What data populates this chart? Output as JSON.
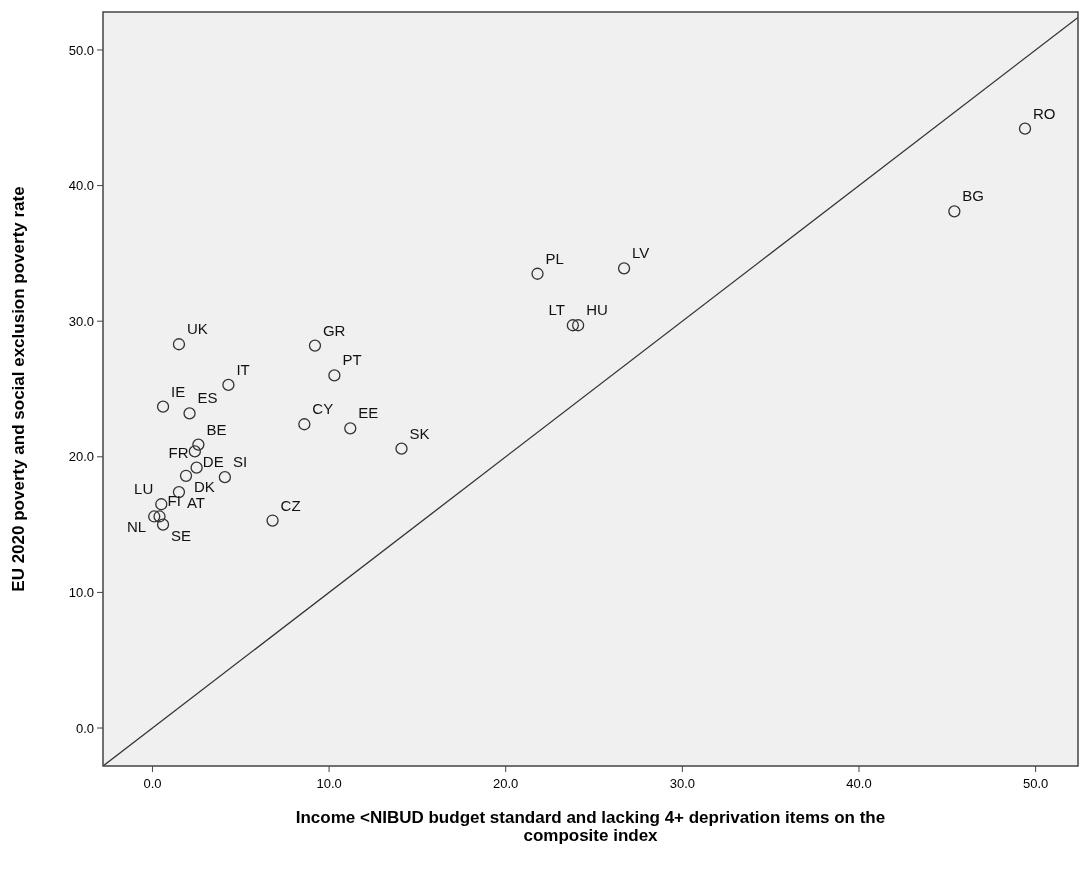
{
  "chart_data": {
    "type": "scatter",
    "xlabel": "Income <NIBUD budget standard and lacking 4+ deprivation items on the composite index",
    "ylabel": "EU 2020 poverty and social exclusion poverty rate",
    "xlim": [
      -2.8,
      52.4
    ],
    "ylim": [
      -2.8,
      52.8
    ],
    "xticks": [
      {
        "value": 0,
        "label": "0.0"
      },
      {
        "value": 10,
        "label": "10.0"
      },
      {
        "value": 20,
        "label": "20.0"
      },
      {
        "value": 30,
        "label": "30.0"
      },
      {
        "value": 40,
        "label": "40.0"
      },
      {
        "value": 50,
        "label": "50.0"
      }
    ],
    "yticks": [
      {
        "value": 0,
        "label": "0.0"
      },
      {
        "value": 10,
        "label": "10.0"
      },
      {
        "value": 20,
        "label": "20.0"
      },
      {
        "value": 30,
        "label": "30.0"
      },
      {
        "value": 40,
        "label": "40.0"
      },
      {
        "value": 50,
        "label": "50.0"
      }
    ],
    "grid": false,
    "marker": "circle",
    "series": [
      {
        "color": "#333333",
        "x": [
          49.4,
          45.4,
          21.8,
          26.7,
          23.8,
          24.1,
          1.5,
          9.2,
          10.3,
          4.3,
          0.6,
          2.1,
          8.6,
          11.2,
          14.1,
          2.6,
          2.4,
          2.5,
          1.9,
          4.1,
          1.5,
          0.5,
          0.1,
          0.4,
          0.6,
          6.8
        ],
        "values": [
          44.2,
          38.1,
          33.5,
          33.9,
          29.7,
          29.7,
          28.3,
          28.2,
          26.0,
          25.3,
          23.7,
          23.2,
          22.4,
          22.1,
          20.6,
          20.9,
          20.4,
          19.2,
          18.6,
          18.5,
          17.4,
          16.5,
          15.6,
          15.6,
          15.0,
          15.3
        ]
      },
      {
        "type": "line",
        "color": "#333333",
        "marker": "none",
        "line_style": "solid",
        "x": [
          -2.8,
          52.4
        ],
        "values": [
          -2.8,
          52.4
        ]
      }
    ],
    "annotations": [
      {
        "text": "RO",
        "x": 49.4,
        "y": 44.2
      },
      {
        "text": "BG",
        "x": 45.4,
        "y": 38.1
      },
      {
        "text": "PL",
        "x": 21.8,
        "y": 33.5
      },
      {
        "text": "LV",
        "x": 26.7,
        "y": 33.9
      },
      {
        "text": "HU",
        "x": 24.1,
        "y": 29.7
      },
      {
        "text": "LT",
        "x": 23.8,
        "y": 29.7
      },
      {
        "text": "UK",
        "x": 1.5,
        "y": 28.3
      },
      {
        "text": "GR",
        "x": 9.2,
        "y": 28.2
      },
      {
        "text": "PT",
        "x": 10.3,
        "y": 26.0
      },
      {
        "text": "IT",
        "x": 4.3,
        "y": 25.3
      },
      {
        "text": "IE",
        "x": 0.6,
        "y": 23.7
      },
      {
        "text": "ES",
        "x": 2.1,
        "y": 23.2
      },
      {
        "text": "CY",
        "x": 8.6,
        "y": 22.4
      },
      {
        "text": "EE",
        "x": 11.2,
        "y": 22.1
      },
      {
        "text": "SK",
        "x": 14.1,
        "y": 20.6
      },
      {
        "text": "BE",
        "x": 2.6,
        "y": 20.9
      },
      {
        "text": "DE",
        "x": 2.4,
        "y": 20.4
      },
      {
        "text": "FR",
        "x": 2.5,
        "y": 19.2
      },
      {
        "text": "DK",
        "x": 1.9,
        "y": 18.6
      },
      {
        "text": "SI",
        "x": 4.1,
        "y": 18.5
      },
      {
        "text": "AT",
        "x": 1.5,
        "y": 17.4
      },
      {
        "text": "LU",
        "x": 0.5,
        "y": 16.5
      },
      {
        "text": "NL",
        "x": 0.1,
        "y": 15.6
      },
      {
        "text": "FI",
        "x": 0.4,
        "y": 15.6
      },
      {
        "text": "SE",
        "x": 0.6,
        "y": 15.0
      },
      {
        "text": "CZ",
        "x": 6.8,
        "y": 15.3
      }
    ]
  }
}
